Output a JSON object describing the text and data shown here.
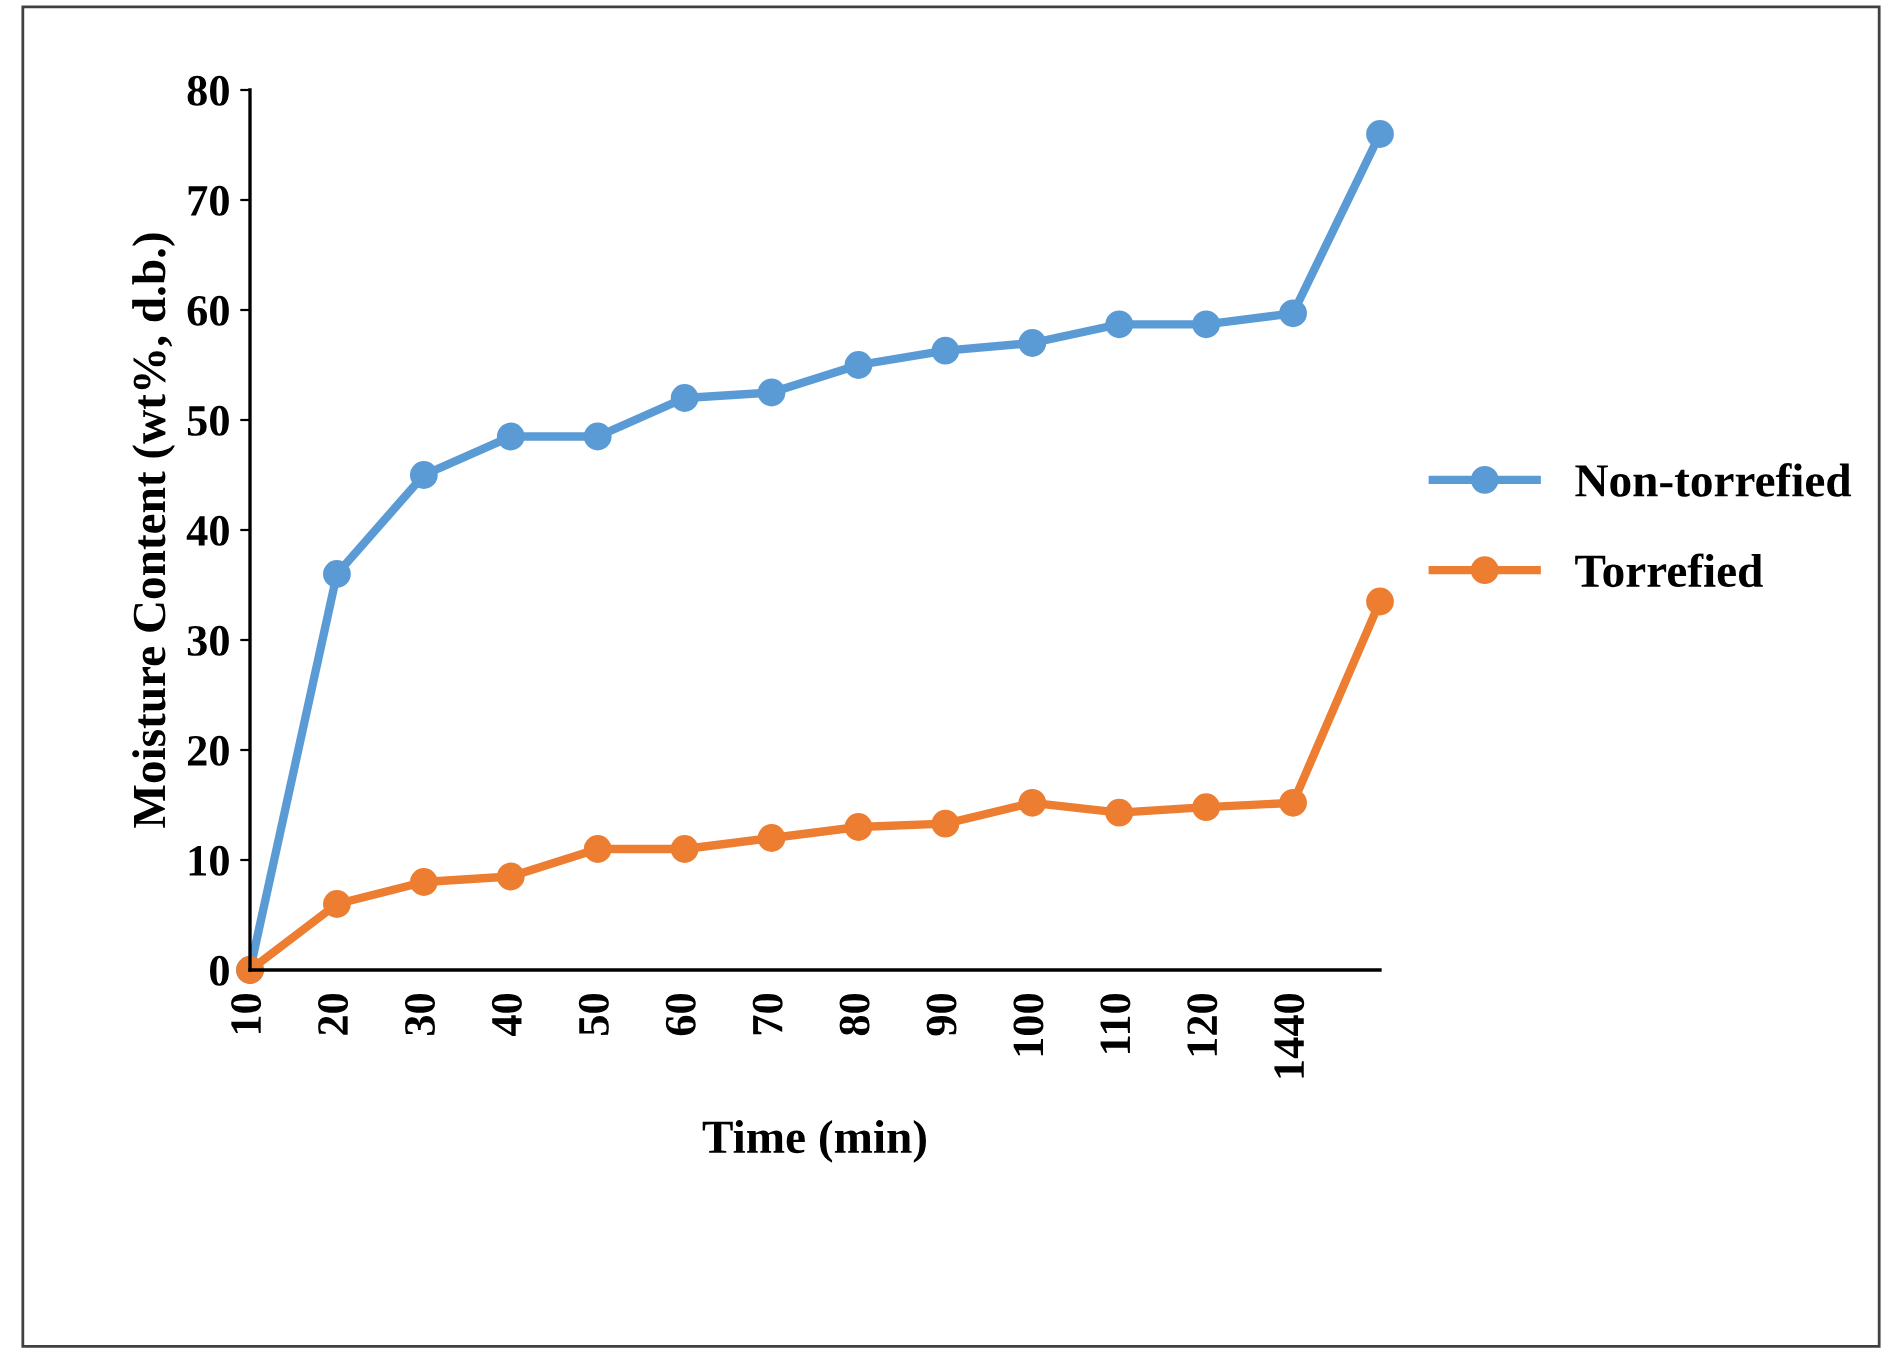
{
  "chart_data": {
    "type": "line",
    "xlabel": "Time (min)",
    "ylabel": "Moisture Content (wt%, d.b.)",
    "categories": [
      "10",
      "20",
      "30",
      "40",
      "50",
      "60",
      "70",
      "80",
      "90",
      "100",
      "110",
      "120",
      "1440",
      null
    ],
    "series": [
      {
        "name": "Non-torrefied",
        "color": "#5b9bd5",
        "values": [
          0,
          36,
          45,
          48.5,
          48.5,
          52,
          52.5,
          55,
          56.3,
          57,
          58.7,
          58.7,
          59.7,
          76
        ]
      },
      {
        "name": "Torrefied",
        "color": "#ed7d31",
        "values": [
          0,
          6,
          8,
          8.5,
          11,
          11,
          12,
          13,
          13.3,
          15.2,
          14.3,
          14.8,
          15.2,
          33.5
        ]
      }
    ],
    "ylim": [
      0,
      80
    ],
    "yticks": [
      0,
      10,
      20,
      30,
      40,
      50,
      60,
      70,
      80
    ],
    "grid": false,
    "legend": "right",
    "marker": "circle",
    "line_style": "solid"
  }
}
